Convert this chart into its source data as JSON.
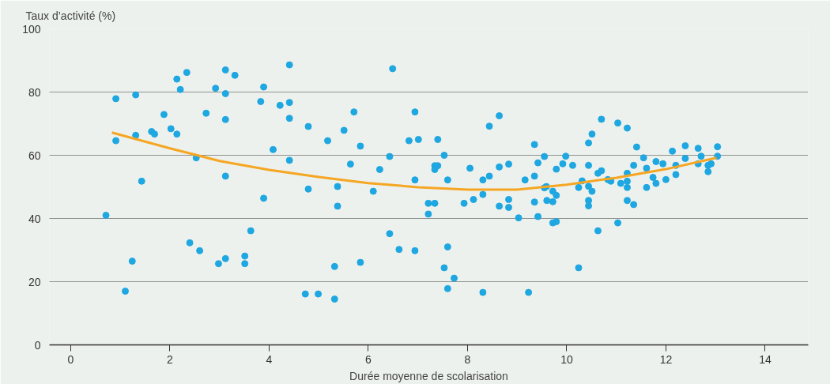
{
  "chart_data": {
    "type": "scatter",
    "xlabel": "Durée moyenne de scolarisation",
    "ylabel": "Taux d’activité (%)",
    "xlim": [
      -0.43,
      14.87
    ],
    "ylim": [
      0,
      100
    ],
    "xticks": [
      0,
      2,
      4,
      6,
      8,
      10,
      12,
      14
    ],
    "yticks": [
      0,
      20,
      40,
      60,
      80,
      100
    ],
    "grid": "y",
    "marker": "circle",
    "series": [
      {
        "color": "#1ea7e1",
        "x": [
          0.71,
          0.91,
          0.91,
          1.1,
          1.24,
          1.31,
          1.31,
          1.43,
          1.63,
          1.69,
          1.88,
          2.02,
          2.14,
          2.14,
          2.21,
          2.34,
          2.4,
          2.53,
          2.6,
          2.73,
          2.92,
          2.98,
          3.12,
          3.12,
          3.12,
          3.12,
          3.12,
          3.31,
          3.51,
          3.51,
          3.63,
          3.83,
          3.89,
          3.89,
          4.08,
          4.22,
          4.41,
          4.41,
          4.41,
          4.41,
          4.73,
          4.79,
          4.79,
          4.99,
          5.18,
          5.32,
          5.32,
          5.38,
          5.38,
          5.51,
          5.64,
          5.71,
          5.84,
          5.84,
          6.1,
          6.23,
          6.43,
          6.43,
          6.49,
          6.62,
          6.82,
          6.94,
          6.94,
          6.94,
          7.01,
          7.21,
          7.21,
          7.34,
          7.34,
          7.34,
          7.4,
          7.4,
          7.53,
          7.53,
          7.6,
          7.6,
          7.6,
          7.73,
          7.93,
          8.05,
          8.12,
          8.31,
          8.31,
          8.31,
          8.44,
          8.44,
          8.64,
          8.64,
          8.64,
          8.83,
          8.83,
          8.83,
          9.03,
          9.16,
          9.23,
          9.35,
          9.35,
          9.35,
          9.42,
          9.42,
          9.55,
          9.55,
          9.59,
          9.6,
          9.72,
          9.72,
          9.72,
          9.79,
          9.79,
          9.79,
          9.92,
          9.98,
          10.12,
          10.24,
          10.24,
          10.31,
          10.44,
          10.44,
          10.44,
          10.44,
          10.44,
          10.51,
          10.51,
          10.63,
          10.63,
          10.7,
          10.7,
          10.83,
          10.89,
          11.03,
          11.03,
          11.09,
          11.22,
          11.22,
          11.22,
          11.22,
          11.22,
          11.35,
          11.35,
          11.41,
          11.55,
          11.61,
          11.61,
          11.74,
          11.8,
          11.8,
          11.94,
          12.0,
          12.13,
          12.2,
          12.2,
          12.39,
          12.39,
          12.65,
          12.65,
          12.71,
          12.85,
          12.85,
          12.91,
          13.04,
          13.04
        ],
        "values": [
          41.0,
          77.9,
          64.6,
          17.0,
          26.5,
          79.1,
          66.3,
          51.8,
          67.5,
          66.7,
          72.9,
          68.4,
          84.1,
          66.7,
          80.8,
          86.2,
          32.3,
          59.2,
          29.8,
          73.3,
          81.2,
          25.7,
          87.0,
          79.5,
          71.3,
          53.4,
          27.3,
          85.3,
          28.1,
          25.7,
          36.1,
          77.0,
          81.6,
          46.4,
          61.8,
          75.8,
          88.6,
          76.7,
          71.7,
          58.4,
          16.1,
          69.1,
          49.3,
          16.1,
          64.6,
          24.8,
          14.5,
          50.1,
          43.9,
          67.9,
          57.2,
          73.7,
          62.9,
          26.1,
          48.6,
          55.5,
          59.6,
          35.2,
          87.4,
          30.2,
          64.6,
          73.7,
          52.2,
          29.8,
          65.0,
          44.8,
          41.4,
          44.8,
          56.7,
          55.5,
          56.7,
          65.0,
          60.0,
          24.4,
          52.2,
          31.0,
          17.8,
          21.1,
          44.8,
          55.9,
          46.0,
          47.6,
          52.2,
          16.6,
          53.4,
          69.2,
          72.5,
          56.3,
          43.9,
          57.2,
          46.0,
          43.5,
          40.2,
          52.2,
          16.6,
          63.4,
          53.4,
          45.2,
          57.6,
          40.6,
          59.6,
          49.7,
          50.1,
          45.7,
          48.6,
          45.3,
          38.6,
          55.6,
          47.3,
          39.0,
          57.3,
          59.7,
          56.8,
          49.8,
          24.4,
          51.9,
          63.9,
          56.8,
          50.2,
          45.7,
          44.0,
          66.7,
          48.6,
          54.3,
          36.1,
          71.4,
          55.1,
          52.3,
          51.8,
          70.2,
          38.6,
          51.1,
          68.6,
          54.3,
          51.8,
          49.8,
          45.7,
          56.8,
          44.4,
          62.6,
          59.2,
          55.9,
          49.8,
          53.0,
          58.0,
          51.1,
          57.3,
          52.3,
          61.3,
          56.8,
          53.9,
          63.0,
          59.0,
          62.2,
          57.3,
          59.7,
          56.8,
          54.8,
          57.3,
          62.7,
          59.7
        ]
      },
      {
        "type": "line",
        "color": "#f5a623",
        "marker": "none",
        "x": [
          0.83,
          2,
          3,
          4,
          5,
          6,
          7,
          8,
          9,
          10,
          11,
          12,
          13.02
        ],
        "values": [
          67.2,
          62.2,
          58.2,
          55.4,
          53.1,
          51.2,
          49.9,
          49.1,
          49.1,
          50.7,
          52.9,
          55.6,
          59.2
        ]
      }
    ]
  }
}
